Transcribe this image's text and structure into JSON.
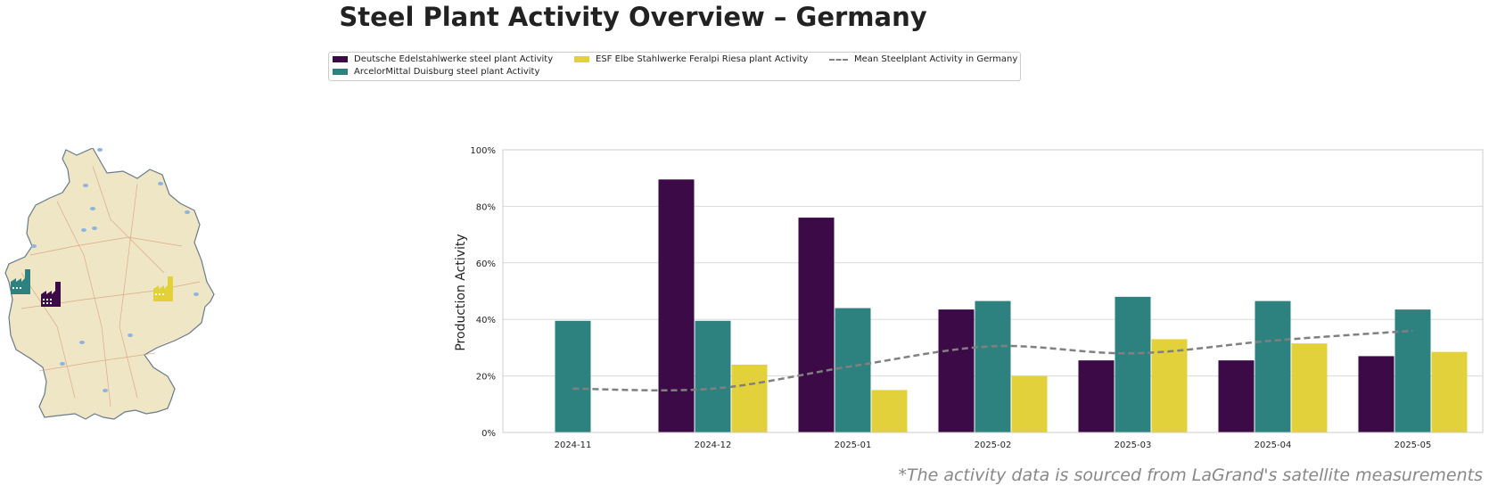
{
  "title": "Steel Plant Activity Overview – Germany",
  "footnote": "*The activity data is sourced from LaGrand's satellite measurements",
  "legend": {
    "deutsche": "Deutsche Edelstahlwerke steel plant Activity",
    "arcelor": "ArcelorMittal Duisburg steel plant Activity",
    "esf": "ESF Elbe Stahlwerke Feralpi Riesa plant Activity",
    "mean": "Mean Steelplant Activity in Germany"
  },
  "colors": {
    "deutsche": "#3b0a47",
    "arcelor": "#2d8280",
    "esf": "#e2d13a",
    "mean": "#808080"
  },
  "map": {
    "icons": [
      "factory-icon-arcelor",
      "factory-icon-deutsche",
      "factory-icon-esf"
    ]
  },
  "chart_data": {
    "type": "bar",
    "categories": [
      "2024-11",
      "2024-12",
      "2025-01",
      "2025-02",
      "2025-03",
      "2025-04",
      "2025-05"
    ],
    "series": [
      {
        "name": "Deutsche Edelstahlwerke steel plant Activity",
        "values": [
          null,
          89.5,
          76,
          43.5,
          25.5,
          25.5,
          27
        ]
      },
      {
        "name": "ArcelorMittal Duisburg steel plant Activity",
        "values": [
          39.5,
          39.5,
          44,
          46.5,
          48,
          46.5,
          43.5
        ]
      },
      {
        "name": "ESF Elbe Stahlwerke Feralpi Riesa plant Activity",
        "values": [
          null,
          24,
          15,
          20,
          33,
          31.5,
          28.5
        ]
      }
    ],
    "mean_line": {
      "name": "Mean Steelplant Activity in Germany",
      "values": [
        15.5,
        15.5,
        23.5,
        30.5,
        28,
        32.5,
        36
      ]
    },
    "ylabel": "Production Activity",
    "xlabel": "",
    "ylim": [
      0,
      100
    ],
    "yticks": [
      0,
      20,
      40,
      60,
      80,
      100
    ],
    "ytick_labels": [
      "0%",
      "20%",
      "40%",
      "60%",
      "80%",
      "100%"
    ],
    "grid": true,
    "legend_position": "top-center"
  }
}
